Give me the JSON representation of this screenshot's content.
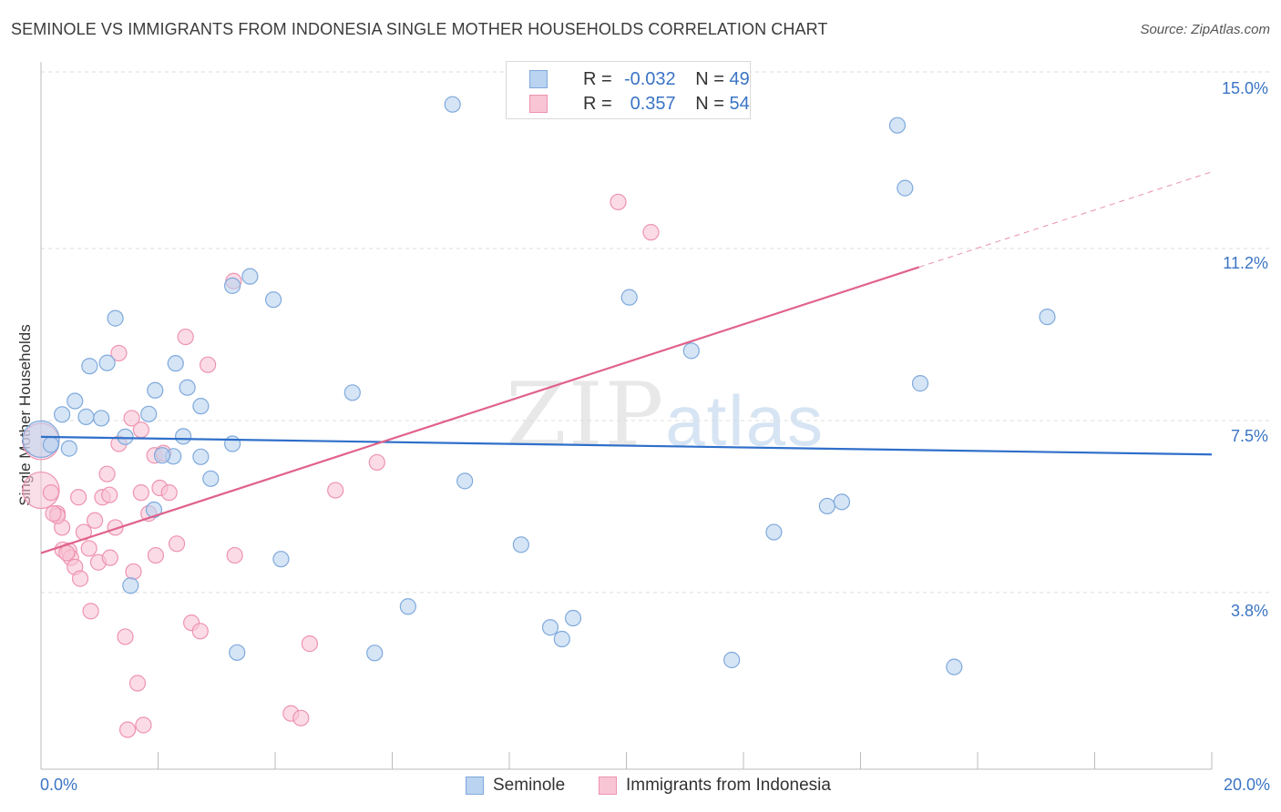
{
  "title": "SEMINOLE VS IMMIGRANTS FROM INDONESIA SINGLE MOTHER HOUSEHOLDS CORRELATION CHART",
  "source": "Source: ZipAtlas.com",
  "watermark": {
    "zip": "ZIP",
    "atlas": "atlas"
  },
  "legend_top": [
    {
      "r_label": "R =",
      "r_value": "-0.032",
      "n_label": "N =",
      "n_value": "49"
    },
    {
      "r_label": "R =",
      "r_value": "0.357",
      "n_label": "N =",
      "n_value": "54"
    }
  ],
  "legend_bottom": [
    {
      "label": "Seminole"
    },
    {
      "label": "Immigrants from Indonesia"
    }
  ],
  "colors": {
    "seminole_fill": "#b9d3f0",
    "seminole_stroke": "#7fa9dc",
    "seminole_line": "#2f6fca",
    "indonesia_fill": "#f8c5d5",
    "indonesia_stroke": "#ee93b0",
    "indonesia_line": "#e0628a",
    "tick_text": "#3a74c4",
    "grid": "#dddddd"
  },
  "chart_data": {
    "type": "scatter",
    "title": "SEMINOLE VS IMMIGRANTS FROM INDONESIA SINGLE MOTHER HOUSEHOLDS CORRELATION CHART",
    "xlabel": "",
    "ylabel": "Single Mother Households",
    "xlim": [
      0,
      20
    ],
    "ylim": [
      0,
      15.5
    ],
    "x_tick_labels": [
      "0.0%",
      "20.0%"
    ],
    "y_ticks": [
      3.8,
      7.5,
      11.2,
      15.0
    ],
    "y_tick_labels": [
      "3.8%",
      "7.5%",
      "11.2%",
      "15.0%"
    ],
    "grid": "horizontal dashed",
    "legend_position": "top-center",
    "series": [
      {
        "name": "Seminole",
        "r": -0.032,
        "n": 49,
        "trend": {
          "x": [
            0,
            20
          ],
          "y": [
            7.15,
            6.77
          ]
        },
        "points": [
          [
            7.03,
            14.3
          ],
          [
            14.63,
            13.85
          ],
          [
            14.76,
            12.5
          ],
          [
            0.0,
            7.1
          ],
          [
            0.17,
            6.98
          ],
          [
            0.48,
            6.9
          ],
          [
            0.36,
            7.63
          ],
          [
            0.58,
            7.92
          ],
          [
            0.77,
            7.58
          ],
          [
            0.83,
            8.67
          ],
          [
            1.03,
            7.55
          ],
          [
            1.13,
            8.74
          ],
          [
            1.27,
            9.7
          ],
          [
            1.44,
            7.15
          ],
          [
            1.84,
            7.64
          ],
          [
            1.95,
            8.15
          ],
          [
            2.3,
            8.73
          ],
          [
            2.26,
            6.73
          ],
          [
            2.07,
            6.75
          ],
          [
            2.5,
            8.21
          ],
          [
            2.43,
            7.16
          ],
          [
            2.73,
            7.81
          ],
          [
            2.73,
            6.72
          ],
          [
            3.27,
            10.4
          ],
          [
            3.57,
            10.6
          ],
          [
            3.27,
            7.0
          ],
          [
            2.9,
            6.25
          ],
          [
            3.97,
            10.1
          ],
          [
            5.32,
            8.1
          ],
          [
            7.24,
            6.2
          ],
          [
            10.05,
            10.15
          ],
          [
            11.11,
            9.0
          ],
          [
            17.19,
            9.73
          ],
          [
            15.02,
            8.3
          ],
          [
            13.43,
            5.66
          ],
          [
            13.68,
            5.75
          ],
          [
            12.52,
            5.1
          ],
          [
            8.2,
            4.83
          ],
          [
            6.27,
            3.5
          ],
          [
            8.7,
            3.05
          ],
          [
            9.09,
            3.25
          ],
          [
            8.9,
            2.8
          ],
          [
            4.1,
            4.52
          ],
          [
            3.35,
            2.51
          ],
          [
            5.7,
            2.5
          ],
          [
            11.8,
            2.35
          ],
          [
            15.6,
            2.2
          ],
          [
            1.93,
            5.58
          ],
          [
            1.53,
            3.95
          ]
        ]
      },
      {
        "name": "Immigrants from Indonesia",
        "r": 0.357,
        "n": 54,
        "trend": {
          "x": [
            0,
            15
          ],
          "y": [
            4.65,
            10.8
          ]
        },
        "trend_dashed": {
          "x": [
            15,
            20
          ],
          "y": [
            10.8,
            12.85
          ]
        },
        "points": [
          [
            0.0,
            7.05
          ],
          [
            0.0,
            6.0
          ],
          [
            0.17,
            5.95
          ],
          [
            0.28,
            5.5
          ],
          [
            0.36,
            5.2
          ],
          [
            0.28,
            5.45
          ],
          [
            0.37,
            4.72
          ],
          [
            0.48,
            4.7
          ],
          [
            0.51,
            4.55
          ],
          [
            0.58,
            4.35
          ],
          [
            0.44,
            4.65
          ],
          [
            0.64,
            5.85
          ],
          [
            0.67,
            4.1
          ],
          [
            0.73,
            5.1
          ],
          [
            0.82,
            4.75
          ],
          [
            0.85,
            3.4
          ],
          [
            0.92,
            5.35
          ],
          [
            0.98,
            4.45
          ],
          [
            1.05,
            5.85
          ],
          [
            1.13,
            6.35
          ],
          [
            1.17,
            5.9
          ],
          [
            1.18,
            4.55
          ],
          [
            1.27,
            5.2
          ],
          [
            1.33,
            8.95
          ],
          [
            1.33,
            7.0
          ],
          [
            1.44,
            2.85
          ],
          [
            1.58,
            4.25
          ],
          [
            1.55,
            7.55
          ],
          [
            1.65,
            1.85
          ],
          [
            1.71,
            5.95
          ],
          [
            1.71,
            7.3
          ],
          [
            1.84,
            5.5
          ],
          [
            1.94,
            6.75
          ],
          [
            1.96,
            4.6
          ],
          [
            2.03,
            6.05
          ],
          [
            2.09,
            6.8
          ],
          [
            2.19,
            5.95
          ],
          [
            2.32,
            4.85
          ],
          [
            2.47,
            9.3
          ],
          [
            2.57,
            3.15
          ],
          [
            2.72,
            2.97
          ],
          [
            2.85,
            8.7
          ],
          [
            3.29,
            10.5
          ],
          [
            3.31,
            4.6
          ],
          [
            4.27,
            1.2
          ],
          [
            4.44,
            1.1
          ],
          [
            4.59,
            2.7
          ],
          [
            5.03,
            6.0
          ],
          [
            5.74,
            6.6
          ],
          [
            9.86,
            12.2
          ],
          [
            10.42,
            11.55
          ],
          [
            1.75,
            0.95
          ],
          [
            1.48,
            0.85
          ],
          [
            0.21,
            5.5
          ]
        ]
      }
    ]
  }
}
